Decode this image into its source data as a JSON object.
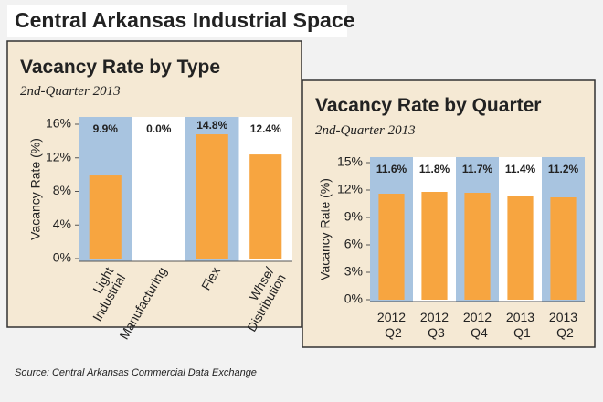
{
  "title": "Central Arkansas Industrial Space",
  "source": "Source: Central Arkansas Commercial Data Exchange",
  "chart_data": [
    {
      "type": "bar",
      "title": "Vacancy Rate by Type",
      "subtitle": "2nd-Quarter 2013",
      "y_label": "Vacancy Rate (%)",
      "categories": [
        "Light Industrial",
        "Manufacturing",
        "Flex",
        "Whse/ Distribution"
      ],
      "values": [
        9.9,
        0,
        14.8,
        12.4
      ],
      "value_labels": [
        "9.9%",
        "0.0%",
        "14.8%",
        "12.4%"
      ],
      "color": "#f7a540",
      "band_colors": [
        "#a8c4e0",
        "#ffffff"
      ],
      "ylim": [
        0,
        16
      ],
      "yticks": [
        {
          "value": 0,
          "label": "0%"
        },
        {
          "value": 4,
          "label": "4%"
        },
        {
          "value": 8,
          "label": "8%"
        },
        {
          "value": 12,
          "label": "12%"
        },
        {
          "value": 16,
          "label": "16%"
        }
      ]
    },
    {
      "type": "bar",
      "title": "Vacancy Rate by Quarter",
      "subtitle": "2nd-Quarter 2013",
      "y_label": "Vacancy Rate (%)",
      "categories": [
        "2012 Q2",
        "2012 Q3",
        "2012 Q4",
        "2013 Q1",
        "2013 Q2"
      ],
      "values": [
        11.6,
        11.8,
        11.7,
        11.4,
        11.2
      ],
      "value_labels": [
        "11.6%",
        "11.8%",
        "11.7%",
        "11.4%",
        "11.2%"
      ],
      "color": "#f7a540",
      "band_colors": [
        "#a8c4e0",
        "#ffffff"
      ],
      "ylim": [
        0,
        15
      ],
      "yticks": [
        {
          "value": 0,
          "label": "0%"
        },
        {
          "value": 3,
          "label": "3%"
        },
        {
          "value": 6,
          "label": "6%"
        },
        {
          "value": 9,
          "label": "9%"
        },
        {
          "value": 12,
          "label": "12%"
        },
        {
          "value": 15,
          "label": "15%"
        }
      ]
    }
  ]
}
